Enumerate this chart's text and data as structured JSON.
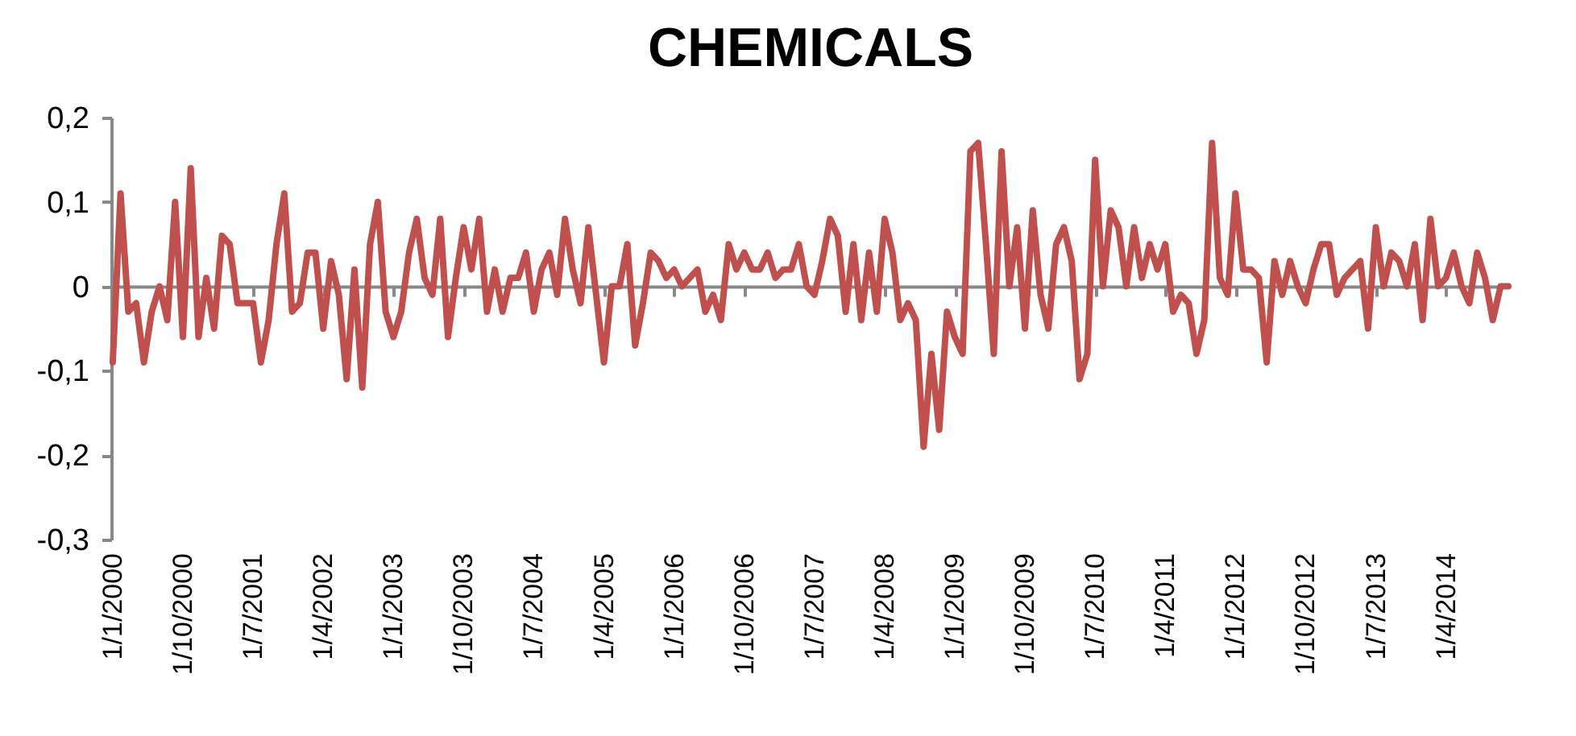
{
  "chart_data": {
    "type": "line",
    "title": "CHEMICALS",
    "categories": [
      "1/1/2000",
      null,
      null,
      null,
      null,
      null,
      null,
      null,
      null,
      "1/10/2000",
      null,
      null,
      null,
      null,
      null,
      null,
      null,
      null,
      "1/7/2001",
      null,
      null,
      null,
      null,
      null,
      null,
      null,
      null,
      "1/4/2002",
      null,
      null,
      null,
      null,
      null,
      null,
      null,
      null,
      "1/1/2003",
      null,
      null,
      null,
      null,
      null,
      null,
      null,
      null,
      "1/10/2003",
      null,
      null,
      null,
      null,
      null,
      null,
      null,
      null,
      "1/7/2004",
      null,
      null,
      null,
      null,
      null,
      null,
      null,
      null,
      "1/4/2005",
      null,
      null,
      null,
      null,
      null,
      null,
      null,
      null,
      "1/1/2006",
      null,
      null,
      null,
      null,
      null,
      null,
      null,
      null,
      "1/10/2006",
      null,
      null,
      null,
      null,
      null,
      null,
      null,
      null,
      "1/7/2007",
      null,
      null,
      null,
      null,
      null,
      null,
      null,
      null,
      "1/4/2008",
      null,
      null,
      null,
      null,
      null,
      null,
      null,
      null,
      "1/1/2009",
      null,
      null,
      null,
      null,
      null,
      null,
      null,
      null,
      "1/10/2009",
      null,
      null,
      null,
      null,
      null,
      null,
      null,
      null,
      "1/7/2010",
      null,
      null,
      null,
      null,
      null,
      null,
      null,
      null,
      "1/4/2011",
      null,
      null,
      null,
      null,
      null,
      null,
      null,
      null,
      "1/1/2012",
      null,
      null,
      null,
      null,
      null,
      null,
      null,
      null,
      "1/10/2012",
      null,
      null,
      null,
      null,
      null,
      null,
      null,
      null,
      "1/7/2013",
      null,
      null,
      null,
      null,
      null,
      null,
      null,
      null,
      "1/4/2014",
      null,
      null,
      null,
      null,
      null,
      null,
      null,
      null
    ],
    "series": [
      {
        "color": "#c0504d",
        "values": [
          -0.09,
          0.11,
          -0.03,
          -0.02,
          -0.09,
          -0.03,
          0.0,
          -0.04,
          0.1,
          -0.06,
          0.14,
          -0.06,
          0.01,
          -0.05,
          0.06,
          0.05,
          -0.02,
          -0.02,
          -0.02,
          -0.09,
          -0.04,
          0.05,
          0.11,
          -0.03,
          -0.02,
          0.04,
          0.04,
          -0.05,
          0.03,
          -0.01,
          -0.11,
          0.02,
          -0.12,
          0.05,
          0.1,
          -0.03,
          -0.06,
          -0.03,
          0.04,
          0.08,
          0.01,
          -0.01,
          0.08,
          -0.06,
          0.01,
          0.07,
          0.02,
          0.08,
          -0.03,
          0.02,
          -0.03,
          0.01,
          0.01,
          0.04,
          -0.03,
          0.02,
          0.04,
          -0.01,
          0.08,
          0.02,
          -0.02,
          0.07,
          -0.01,
          -0.09,
          0.0,
          0.0,
          0.05,
          -0.07,
          -0.02,
          0.04,
          0.03,
          0.01,
          0.02,
          0.0,
          0.01,
          0.02,
          -0.03,
          -0.01,
          -0.04,
          0.05,
          0.02,
          0.04,
          0.02,
          0.02,
          0.04,
          0.01,
          0.02,
          0.02,
          0.05,
          0.0,
          -0.01,
          0.03,
          0.08,
          0.06,
          -0.03,
          0.05,
          -0.04,
          0.04,
          -0.03,
          0.08,
          0.04,
          -0.04,
          -0.02,
          -0.04,
          -0.19,
          -0.08,
          -0.17,
          -0.03,
          -0.06,
          -0.08,
          0.16,
          0.17,
          0.05,
          -0.08,
          0.16,
          0.0,
          0.07,
          -0.05,
          0.09,
          -0.01,
          -0.05,
          0.05,
          0.07,
          0.03,
          -0.11,
          -0.08,
          0.15,
          0.0,
          0.09,
          0.07,
          0.0,
          0.07,
          0.01,
          0.05,
          0.02,
          0.05,
          -0.03,
          -0.01,
          -0.02,
          -0.08,
          -0.04,
          0.17,
          0.01,
          -0.01,
          0.11,
          0.02,
          0.02,
          0.01,
          -0.09,
          0.03,
          -0.01,
          0.03,
          0.0,
          -0.02,
          0.02,
          0.05,
          0.05,
          -0.01,
          0.01,
          0.02,
          0.03,
          -0.05,
          0.07,
          0.0,
          0.04,
          0.03,
          0.0,
          0.05,
          -0.04,
          0.08,
          0.0,
          0.01,
          0.04,
          0.0,
          -0.02,
          0.04,
          0.01,
          -0.04,
          0.0,
          0.0
        ]
      }
    ],
    "ylim": [
      -0.3,
      0.2
    ],
    "yticks": [
      {
        "value": -0.3,
        "label": "-0,3"
      },
      {
        "value": -0.2,
        "label": "-0,2"
      },
      {
        "value": -0.1,
        "label": "-0,1"
      },
      {
        "value": 0,
        "label": "0"
      },
      {
        "value": 0.1,
        "label": "0,1"
      },
      {
        "value": 0.2,
        "label": "0,2"
      }
    ]
  }
}
